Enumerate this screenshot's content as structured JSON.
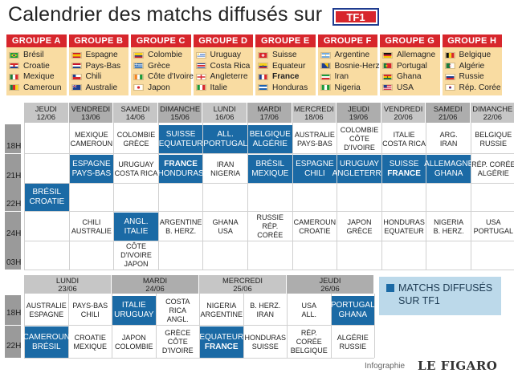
{
  "title": "Calendrier des matchs diffusés sur",
  "logo": "TF1",
  "colors": {
    "group_header": "#d7262c",
    "group_body": "#f9dca2",
    "tf1_broadcast": "#1b6aa5",
    "legend_bg": "#bcd9ea"
  },
  "groups": [
    {
      "name": "GROUPE A",
      "teams": [
        {
          "name": "Brésil",
          "flag": "brazil"
        },
        {
          "name": "Croatie",
          "flag": "croatia"
        },
        {
          "name": "Mexique",
          "flag": "mexico"
        },
        {
          "name": "Cameroun",
          "flag": "cameroon"
        }
      ]
    },
    {
      "name": "GROUPE B",
      "teams": [
        {
          "name": "Espagne",
          "flag": "spain"
        },
        {
          "name": "Pays-Bas",
          "flag": "netherlands"
        },
        {
          "name": "Chili",
          "flag": "chile"
        },
        {
          "name": "Australie",
          "flag": "australia"
        }
      ]
    },
    {
      "name": "GROUPE C",
      "teams": [
        {
          "name": "Colombie",
          "flag": "colombia"
        },
        {
          "name": "Grèce",
          "flag": "greece"
        },
        {
          "name": "Côte d'Ivoire",
          "flag": "ivory-coast"
        },
        {
          "name": "Japon",
          "flag": "japan"
        }
      ]
    },
    {
      "name": "GROUPE D",
      "teams": [
        {
          "name": "Uruguay",
          "flag": "uruguay"
        },
        {
          "name": "Costa Rica",
          "flag": "costa-rica"
        },
        {
          "name": "Angleterre",
          "flag": "england"
        },
        {
          "name": "Italie",
          "flag": "italy"
        }
      ]
    },
    {
      "name": "GROUPE E",
      "teams": [
        {
          "name": "Suisse",
          "flag": "switzerland"
        },
        {
          "name": "Equateur",
          "flag": "ecuador"
        },
        {
          "name": "France",
          "flag": "france",
          "bold": true
        },
        {
          "name": "Honduras",
          "flag": "honduras"
        }
      ]
    },
    {
      "name": "GROUPE F",
      "teams": [
        {
          "name": "Argentine",
          "flag": "argentina"
        },
        {
          "name": "Bosnie-Herz",
          "flag": "bosnia"
        },
        {
          "name": "Iran",
          "flag": "iran"
        },
        {
          "name": "Nigeria",
          "flag": "nigeria"
        }
      ]
    },
    {
      "name": "GROUPE G",
      "teams": [
        {
          "name": "Allemagne",
          "flag": "germany"
        },
        {
          "name": "Portugal",
          "flag": "portugal"
        },
        {
          "name": "Ghana",
          "flag": "ghana"
        },
        {
          "name": "USA",
          "flag": "usa"
        }
      ]
    },
    {
      "name": "GROUPE H",
      "teams": [
        {
          "name": "Belgique",
          "flag": "belgium"
        },
        {
          "name": "Algérie",
          "flag": "algeria"
        },
        {
          "name": "Russie",
          "flag": "russia"
        },
        {
          "name": "Rép. Corée",
          "flag": "korea"
        }
      ]
    }
  ],
  "schedule1": {
    "hours": [
      "18H",
      "21H",
      "22H",
      "24H",
      "03H"
    ],
    "days": [
      {
        "name": "JEUDI",
        "date": "12/06"
      },
      {
        "name": "VENDREDI",
        "date": "13/06"
      },
      {
        "name": "SAMEDI",
        "date": "14/06"
      },
      {
        "name": "DIMANCHE",
        "date": "15/06"
      },
      {
        "name": "LUNDI",
        "date": "16/06"
      },
      {
        "name": "MARDI",
        "date": "17/06"
      },
      {
        "name": "MERCREDI",
        "date": "18/06"
      },
      {
        "name": "JEUDI",
        "date": "19/06"
      },
      {
        "name": "VENDREDI",
        "date": "20/06"
      },
      {
        "name": "SAMEDI",
        "date": "21/06"
      },
      {
        "name": "DIMANCHE",
        "date": "22/06"
      }
    ],
    "matches": [
      {
        "day": 1,
        "hour": 0,
        "lines": [
          "MEXIQUE",
          "CAMEROUN"
        ],
        "tf1": false
      },
      {
        "day": 2,
        "hour": 0,
        "lines": [
          "COLOMBIE",
          "GRÈCE"
        ],
        "tf1": false
      },
      {
        "day": 3,
        "hour": 0,
        "lines": [
          "SUISSE",
          "EQUATEUR"
        ],
        "tf1": true
      },
      {
        "day": 4,
        "hour": 0,
        "lines": [
          "ALL.",
          "PORTUGAL"
        ],
        "tf1": true
      },
      {
        "day": 5,
        "hour": 0,
        "lines": [
          "BELGIQUE",
          "ALGÉRIE"
        ],
        "tf1": true
      },
      {
        "day": 6,
        "hour": 0,
        "lines": [
          "AUSTRALIE",
          "PAYS-BAS"
        ],
        "tf1": false
      },
      {
        "day": 7,
        "hour": 0,
        "lines": [
          "COLOMBIE",
          "CÔTE",
          "D'IVOIRE"
        ],
        "tf1": false
      },
      {
        "day": 8,
        "hour": 0,
        "lines": [
          "ITALIE",
          "COSTA RICA"
        ],
        "tf1": false
      },
      {
        "day": 9,
        "hour": 0,
        "lines": [
          "ARG.",
          "IRAN"
        ],
        "tf1": false
      },
      {
        "day": 10,
        "hour": 0,
        "lines": [
          "BELGIQUE",
          "RUSSIE"
        ],
        "tf1": false
      },
      {
        "day": 1,
        "hour": 1,
        "lines": [
          "ESPAGNE",
          "PAYS-BAS"
        ],
        "tf1": true
      },
      {
        "day": 2,
        "hour": 1,
        "lines": [
          "URUGUAY",
          "COSTA RICA"
        ],
        "tf1": false
      },
      {
        "day": 3,
        "hour": 1,
        "lines": [
          "FRANCE",
          "HONDURAS"
        ],
        "tf1": true,
        "bold": [
          0
        ]
      },
      {
        "day": 4,
        "hour": 1,
        "lines": [
          "IRAN",
          "NIGERIA"
        ],
        "tf1": false
      },
      {
        "day": 5,
        "hour": 1,
        "lines": [
          "BRÉSIL",
          "MEXIQUE"
        ],
        "tf1": true
      },
      {
        "day": 6,
        "hour": 1,
        "lines": [
          "ESPAGNE",
          "CHILI"
        ],
        "tf1": true
      },
      {
        "day": 7,
        "hour": 1,
        "lines": [
          "URUGUAY",
          "ANGLETERRE"
        ],
        "tf1": true
      },
      {
        "day": 8,
        "hour": 1,
        "lines": [
          "SUISSE",
          "FRANCE"
        ],
        "tf1": true,
        "bold": [
          1
        ]
      },
      {
        "day": 9,
        "hour": 1,
        "lines": [
          "ALLEMAGNE",
          "GHANA"
        ],
        "tf1": true
      },
      {
        "day": 10,
        "hour": 1,
        "lines": [
          "RÉP. CORÉE",
          "ALGÉRIE"
        ],
        "tf1": false
      },
      {
        "day": 0,
        "hour": 2,
        "lines": [
          "BRÉSIL",
          "CROATIE"
        ],
        "tf1": true
      },
      {
        "day": 1,
        "hour": 3,
        "lines": [
          "CHILI",
          "AUSTRALIE"
        ],
        "tf1": false
      },
      {
        "day": 2,
        "hour": 3,
        "lines": [
          "ANGL.",
          "ITALIE"
        ],
        "tf1": true
      },
      {
        "day": 3,
        "hour": 3,
        "lines": [
          "ARGENTINE",
          "B. HERZ."
        ],
        "tf1": false
      },
      {
        "day": 4,
        "hour": 3,
        "lines": [
          "GHANA",
          "USA"
        ],
        "tf1": false
      },
      {
        "day": 5,
        "hour": 3,
        "lines": [
          "RUSSIE",
          "RÉP.",
          "CORÉE"
        ],
        "tf1": false
      },
      {
        "day": 6,
        "hour": 3,
        "lines": [
          "CAMEROUN",
          "CROATIE"
        ],
        "tf1": false
      },
      {
        "day": 7,
        "hour": 3,
        "lines": [
          "JAPON",
          "GRÈCE"
        ],
        "tf1": false
      },
      {
        "day": 8,
        "hour": 3,
        "lines": [
          "HONDURAS",
          "EQUATEUR"
        ],
        "tf1": false
      },
      {
        "day": 9,
        "hour": 3,
        "lines": [
          "NIGERIA",
          "B. HERZ."
        ],
        "tf1": false
      },
      {
        "day": 10,
        "hour": 3,
        "lines": [
          "USA",
          "PORTUGAL"
        ],
        "tf1": false
      },
      {
        "day": 2,
        "hour": 4,
        "lines": [
          "CÔTE",
          "D'IVOIRE",
          "JAPON"
        ],
        "tf1": false
      }
    ]
  },
  "schedule2": {
    "hours": [
      "18H",
      "22H"
    ],
    "days": [
      {
        "name": "LUNDI",
        "date": "23/06"
      },
      {
        "name": "MARDI",
        "date": "24/06"
      },
      {
        "name": "MERCREDI",
        "date": "25/06"
      },
      {
        "name": "JEUDI",
        "date": "26/06"
      }
    ],
    "matches": [
      {
        "col": 0,
        "hour": 0,
        "lines": [
          "AUSTRALIE",
          "ESPAGNE"
        ],
        "tf1": false
      },
      {
        "col": 1,
        "hour": 0,
        "lines": [
          "PAYS-BAS",
          "CHILI"
        ],
        "tf1": false
      },
      {
        "col": 2,
        "hour": 0,
        "lines": [
          "ITALIE",
          "URUGUAY"
        ],
        "tf1": true
      },
      {
        "col": 3,
        "hour": 0,
        "lines": [
          "COSTA RICA",
          "ANGL."
        ],
        "tf1": false
      },
      {
        "col": 4,
        "hour": 0,
        "lines": [
          "NIGERIA",
          "ARGENTINE"
        ],
        "tf1": false
      },
      {
        "col": 5,
        "hour": 0,
        "lines": [
          "B. HERZ.",
          "IRAN"
        ],
        "tf1": false
      },
      {
        "col": 6,
        "hour": 0,
        "lines": [
          "USA",
          "ALL."
        ],
        "tf1": false
      },
      {
        "col": 7,
        "hour": 0,
        "lines": [
          "PORTUGAL",
          "GHANA"
        ],
        "tf1": true
      },
      {
        "col": 0,
        "hour": 1,
        "lines": [
          "CAMEROUN",
          "BRÉSIL"
        ],
        "tf1": true
      },
      {
        "col": 1,
        "hour": 1,
        "lines": [
          "CROATIE",
          "MEXIQUE"
        ],
        "tf1": false
      },
      {
        "col": 2,
        "hour": 1,
        "lines": [
          "JAPON",
          "COLOMBIE"
        ],
        "tf1": false
      },
      {
        "col": 3,
        "hour": 1,
        "lines": [
          "GRÈCE",
          "CÔTE",
          "D'IVOIRE"
        ],
        "tf1": false
      },
      {
        "col": 4,
        "hour": 1,
        "lines": [
          "EQUATEUR",
          "FRANCE"
        ],
        "tf1": true,
        "bold": [
          1
        ]
      },
      {
        "col": 5,
        "hour": 1,
        "lines": [
          "HONDURAS",
          "SUISSE"
        ],
        "tf1": false
      },
      {
        "col": 6,
        "hour": 1,
        "lines": [
          "RÉP. CORÉE",
          "BELGIQUE"
        ],
        "tf1": false
      },
      {
        "col": 7,
        "hour": 1,
        "lines": [
          "ALGÉRIE",
          "RUSSIE"
        ],
        "tf1": false
      }
    ]
  },
  "legend": {
    "text": "MATCHS DIFFUSÉS SUR TF1"
  },
  "credit": {
    "label": "Infographie",
    "brand": "LE FIGARO"
  }
}
